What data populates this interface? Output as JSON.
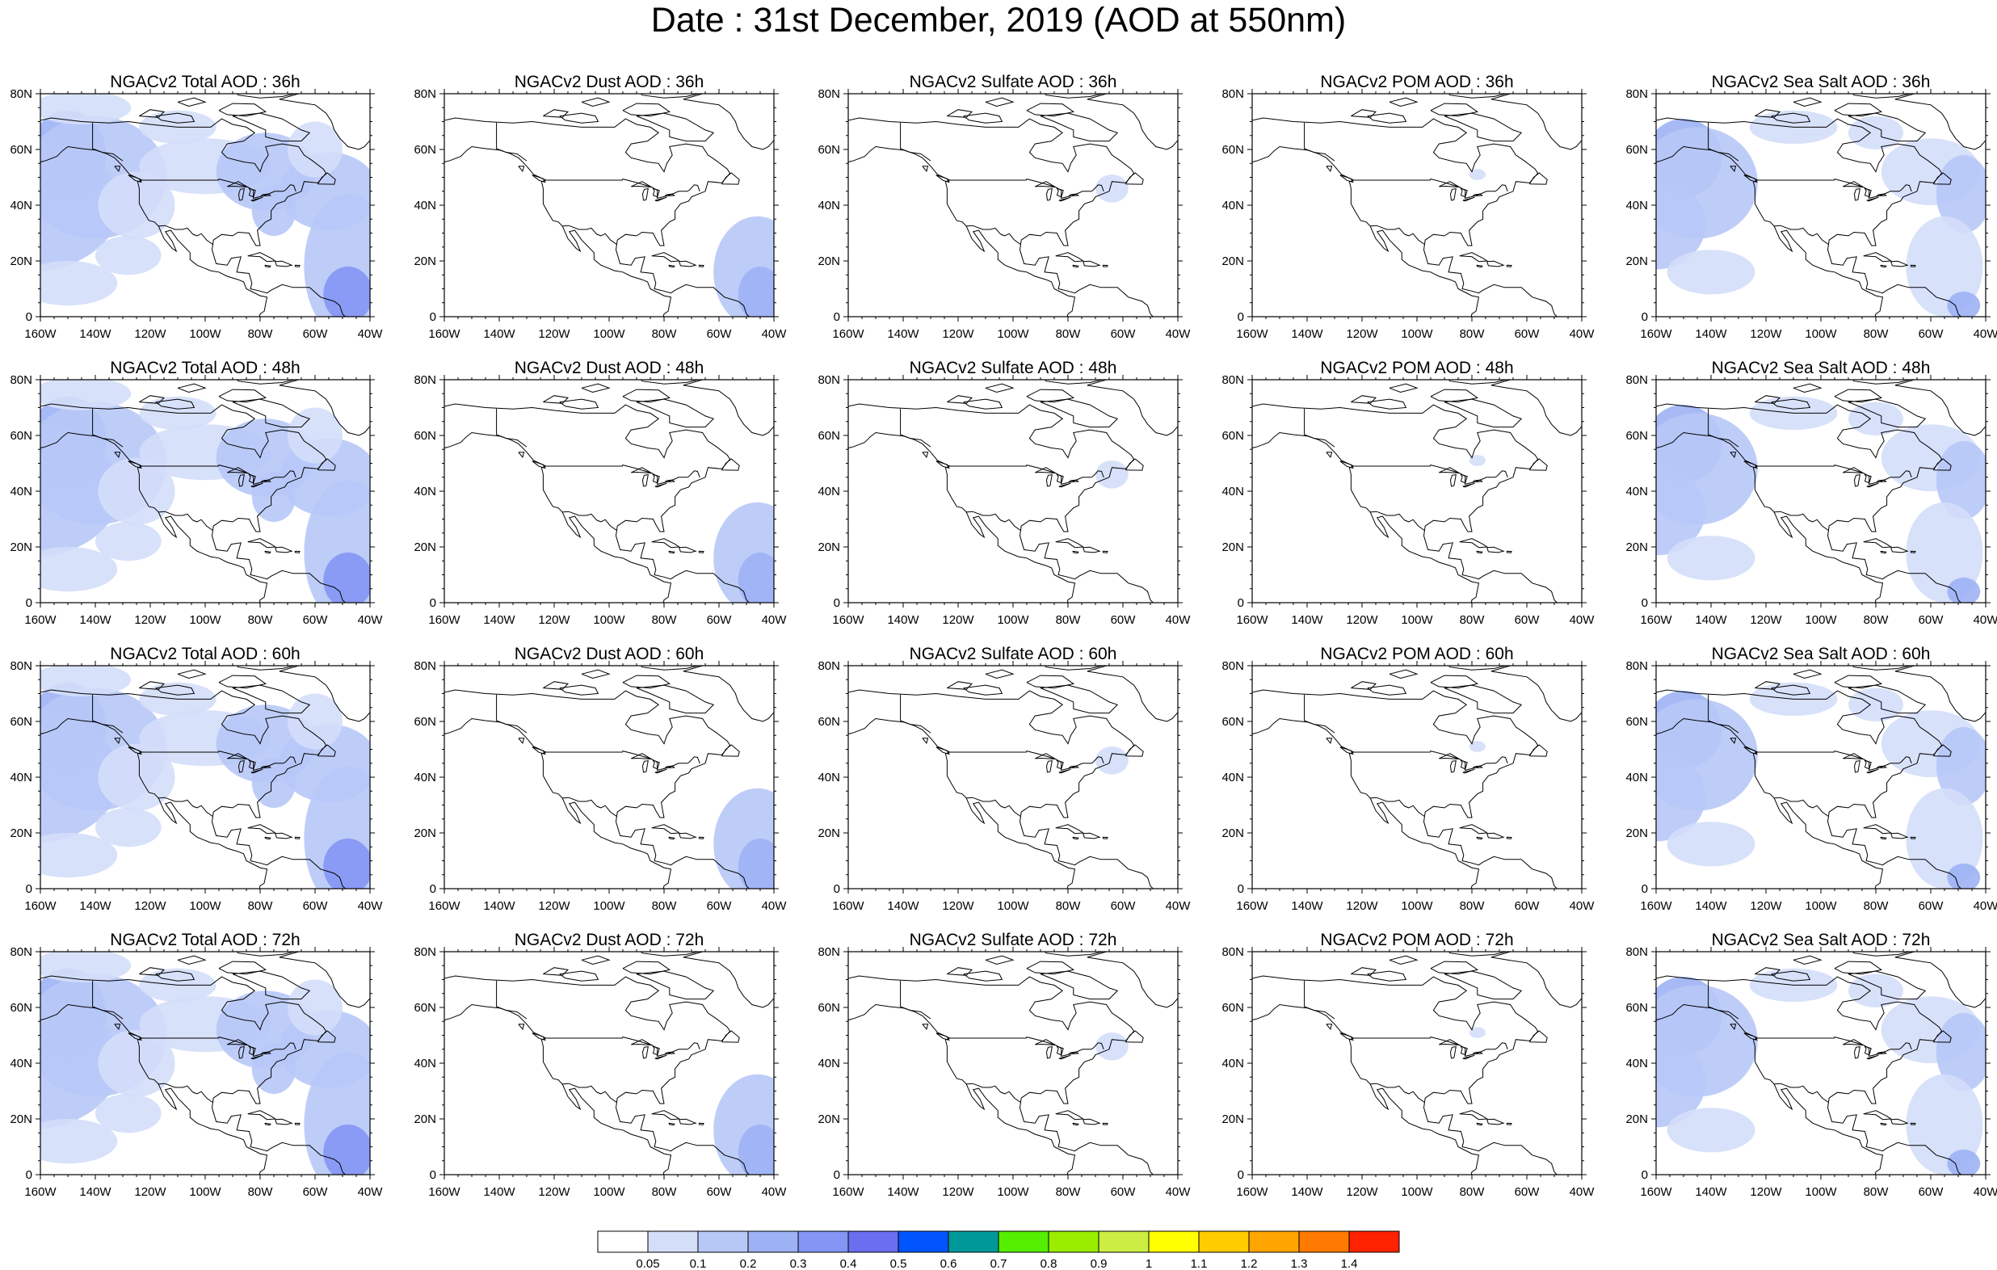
{
  "title": "Date : 31st December, 2019 (AOD at 550nm)",
  "axes": {
    "x_ticks": [
      "160W",
      "140W",
      "120W",
      "100W",
      "80W",
      "60W",
      "40W"
    ],
    "y_ticks": [
      "80N",
      "60N",
      "40N",
      "20N",
      "0"
    ],
    "lon_range": [
      -160,
      -40
    ],
    "lat_range": [
      0,
      80
    ]
  },
  "colors": {
    "map_outline": "#000000",
    "ocean_background": "#ffffff"
  },
  "panels": [
    {
      "title": "NGACv2 Total AOD : 36h",
      "species": "total",
      "hour": 36
    },
    {
      "title": "NGACv2 Dust AOD : 36h",
      "species": "dust",
      "hour": 36
    },
    {
      "title": "NGACv2 Sulfate AOD : 36h",
      "species": "sulfate",
      "hour": 36
    },
    {
      "title": "NGACv2 POM AOD : 36h",
      "species": "pom",
      "hour": 36
    },
    {
      "title": "NGACv2 Sea Salt AOD : 36h",
      "species": "seasalt",
      "hour": 36
    },
    {
      "title": "NGACv2 Total AOD : 48h",
      "species": "total",
      "hour": 48
    },
    {
      "title": "NGACv2 Dust AOD : 48h",
      "species": "dust",
      "hour": 48
    },
    {
      "title": "NGACv2 Sulfate AOD : 48h",
      "species": "sulfate",
      "hour": 48
    },
    {
      "title": "NGACv2 POM AOD : 48h",
      "species": "pom",
      "hour": 48
    },
    {
      "title": "NGACv2 Sea Salt AOD : 48h",
      "species": "seasalt",
      "hour": 48
    },
    {
      "title": "NGACv2 Total AOD : 60h",
      "species": "total",
      "hour": 60
    },
    {
      "title": "NGACv2 Dust AOD : 60h",
      "species": "dust",
      "hour": 60
    },
    {
      "title": "NGACv2 Sulfate AOD : 60h",
      "species": "sulfate",
      "hour": 60
    },
    {
      "title": "NGACv2 POM AOD : 60h",
      "species": "pom",
      "hour": 60
    },
    {
      "title": "NGACv2 Sea Salt AOD : 60h",
      "species": "seasalt",
      "hour": 60
    },
    {
      "title": "NGACv2 Total AOD : 72h",
      "species": "total",
      "hour": 72
    },
    {
      "title": "NGACv2 Dust AOD : 72h",
      "species": "dust",
      "hour": 72
    },
    {
      "title": "NGACv2 Sulfate AOD : 72h",
      "species": "sulfate",
      "hour": 72
    },
    {
      "title": "NGACv2 POM AOD : 72h",
      "species": "pom",
      "hour": 72
    },
    {
      "title": "NGACv2 Sea Salt  AOD : 72h",
      "species": "seasalt",
      "hour": 72
    }
  ],
  "colorbar": {
    "labels": [
      "0.05",
      "0.1",
      "0.2",
      "0.3",
      "0.4",
      "0.5",
      "0.6",
      "0.7",
      "0.8",
      "0.9",
      "1",
      "1.1",
      "1.2",
      "1.3",
      "1.4"
    ],
    "colors": [
      "#ffffff",
      "#d4def9",
      "#b7c8f7",
      "#9db2f5",
      "#8496f5",
      "#6b6ef0",
      "#0055ff",
      "#009999",
      "#55ee00",
      "#99ee00",
      "#ccee44",
      "#ffff00",
      "#ffcc00",
      "#ffa500",
      "#ff7a00",
      "#ff2200"
    ]
  }
}
